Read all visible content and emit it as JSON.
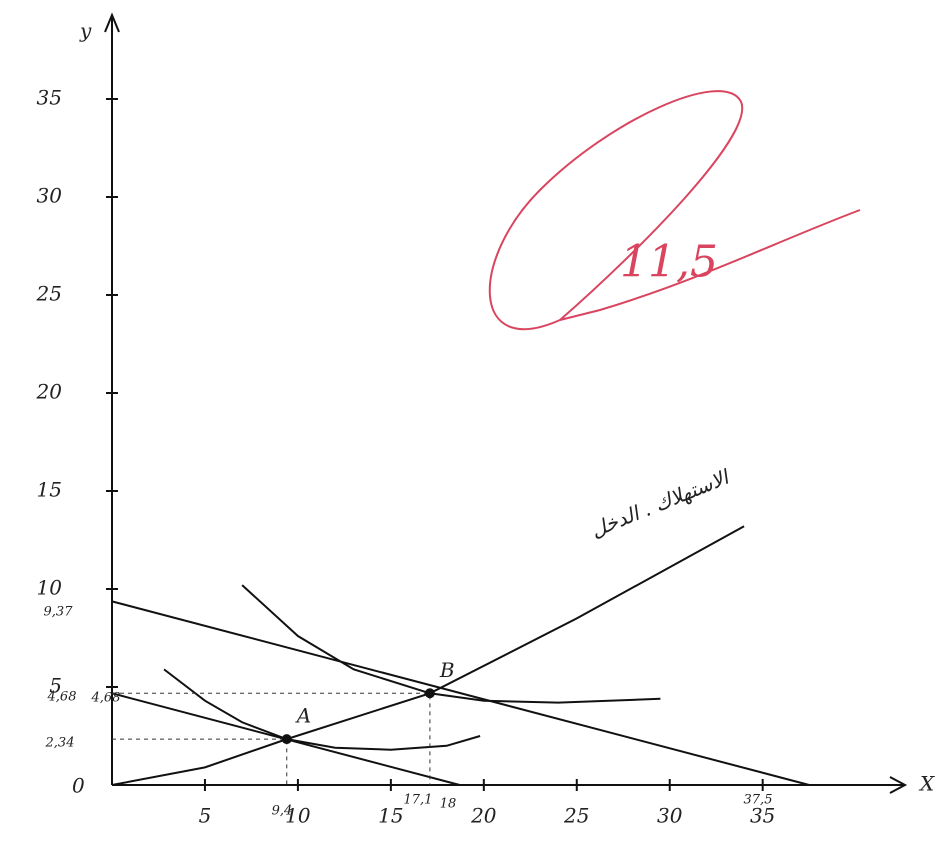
{
  "chart_data": {
    "type": "line",
    "x_label": "X",
    "y_label": "y",
    "origin_label": "0",
    "xlim": [
      0,
      44
    ],
    "ylim": [
      0,
      40
    ],
    "xticks": [
      5,
      10,
      15,
      20,
      25,
      30,
      35
    ],
    "yticks": [
      5,
      10,
      15,
      20,
      25,
      30,
      35
    ],
    "series": [
      {
        "color": "#111111",
        "x": [
          0,
          18.7
        ],
        "values": [
          4.68,
          0
        ]
      },
      {
        "color": "#111111",
        "x": [
          0,
          37.5
        ],
        "values": [
          9.37,
          0
        ]
      },
      {
        "color": "#111111",
        "x": [
          0,
          5,
          9.4,
          17.1,
          25,
          34
        ],
        "values": [
          0,
          0.9,
          2.34,
          4.68,
          8.5,
          13.2
        ]
      },
      {
        "color": "#111111",
        "x": [
          2.8,
          5,
          7,
          9.4,
          12,
          15,
          18,
          19.8
        ],
        "values": [
          5.9,
          4.3,
          3.2,
          2.34,
          1.9,
          1.8,
          2.0,
          2.5
        ]
      },
      {
        "color": "#111111",
        "x": [
          7,
          10,
          13,
          17.1,
          20,
          24,
          29.5
        ],
        "values": [
          10.2,
          7.6,
          5.9,
          4.68,
          4.3,
          4.2,
          4.4
        ]
      }
    ],
    "points": [
      {
        "label": "A",
        "x": 9.4,
        "y": 2.34
      },
      {
        "label": "B",
        "x": 17.1,
        "y": 4.68
      }
    ],
    "annotations": [
      "9,37",
      "4,68",
      "2,34",
      "4,68",
      "9,4",
      "17,1",
      "18",
      "37,5",
      "الاستهلاك . الدخل"
    ],
    "grade": "11,5"
  }
}
